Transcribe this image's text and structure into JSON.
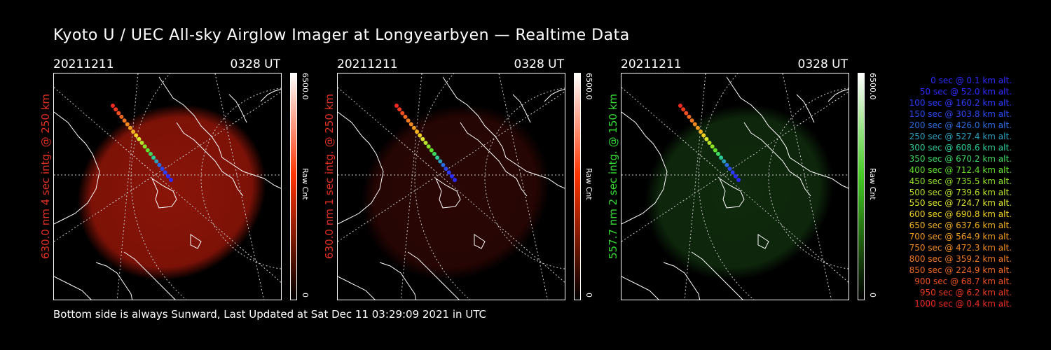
{
  "header": {
    "title": "Kyoto U / UEC All-sky Airglow Imager at Longyearbyen — Realtime Data"
  },
  "panels": [
    {
      "date": "20211211",
      "time": "0328 UT",
      "channel_label": "630.0 nm 4 sec intg. @ 250 km",
      "label_color": "#e03020",
      "cbar_max": "6500.0",
      "cbar_min": "0",
      "cbar_unit": "Raw Cnt",
      "cbar_color": "#ff3300",
      "glow_color": "#8a1408"
    },
    {
      "date": "20211211",
      "time": "0328 UT",
      "channel_label": "630.0 nm 1 sec intg. @ 250 km",
      "label_color": "#e03020",
      "cbar_max": "6500.0",
      "cbar_min": "0",
      "cbar_unit": "Raw Cnt",
      "cbar_color": "#ff3300",
      "glow_color": "#2a0604"
    },
    {
      "date": "20211211",
      "time": "0328 UT",
      "channel_label": "557.7 nm 2 sec intg. @ 150 km",
      "label_color": "#33dd33",
      "cbar_max": "6500.0",
      "cbar_min": "0",
      "cbar_unit": "Raw Cnt",
      "cbar_color": "#44cc22",
      "glow_color": "#0f2a0d"
    }
  ],
  "footer": {
    "text": "Bottom side is always Sunward, Last Updated at Sat Dec 11 03:29:09 2021 in UTC"
  },
  "legend": [
    {
      "text": "0 sec @   0.1 km alt.",
      "color": "#2b2bff"
    },
    {
      "text": "50 sec @  52.0 km alt.",
      "color": "#2b2bff"
    },
    {
      "text": "100 sec @ 160.2 km alt.",
      "color": "#2b3bff"
    },
    {
      "text": "150 sec @ 303.8 km alt.",
      "color": "#2b48f0"
    },
    {
      "text": "200 sec @ 426.0 km alt.",
      "color": "#2b6be0"
    },
    {
      "text": "250 sec @ 527.4 km alt.",
      "color": "#2a9dbd"
    },
    {
      "text": "300 sec @ 608.6 km alt.",
      "color": "#2cc898"
    },
    {
      "text": "350 sec @ 670.2 km alt.",
      "color": "#3dd860"
    },
    {
      "text": "400 sec @ 712.4 km alt.",
      "color": "#5ee02a"
    },
    {
      "text": "450 sec @ 735.5 km alt.",
      "color": "#8de02a"
    },
    {
      "text": "500 sec @ 739.6 km alt.",
      "color": "#b6e02a"
    },
    {
      "text": "550 sec @ 724.7 km alt.",
      "color": "#dce62a"
    },
    {
      "text": "600 sec @ 690.8 km alt.",
      "color": "#f0d020"
    },
    {
      "text": "650 sec @ 637.6 km alt.",
      "color": "#f0b020"
    },
    {
      "text": "700 sec @ 564.9 km alt.",
      "color": "#f09a20"
    },
    {
      "text": "750 sec @ 472.3 km alt.",
      "color": "#f08820"
    },
    {
      "text": "800 sec @ 359.2 km alt.",
      "color": "#f07820"
    },
    {
      "text": "850 sec @ 224.9 km alt.",
      "color": "#f06820"
    },
    {
      "text": "900 sec @  68.7 km alt.",
      "color": "#f05020"
    },
    {
      "text": "950 sec @   6.2 km alt.",
      "color": "#f03a20"
    },
    {
      "text": "1000 sec @   0.4 km alt.",
      "color": "#f02a20"
    }
  ]
}
